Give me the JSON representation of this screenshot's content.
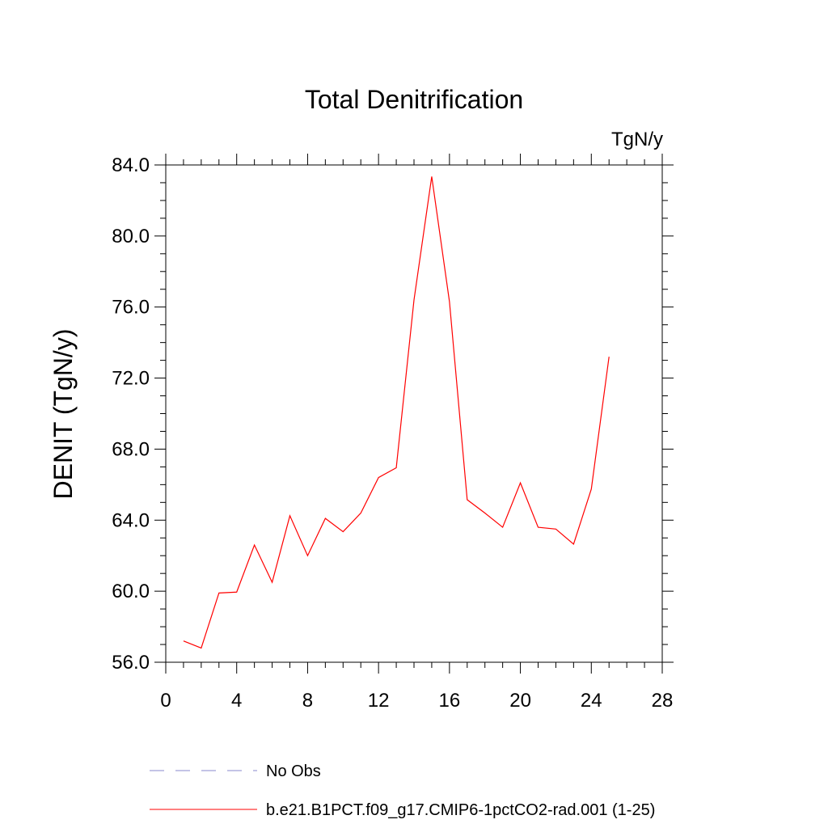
{
  "chart_data": {
    "type": "line",
    "title": "Total Denitrification",
    "units_label": "TgN/y",
    "xlabel": "",
    "ylabel": "DENIT  (TgN/y)",
    "xlim": [
      0,
      28
    ],
    "ylim": [
      56,
      84
    ],
    "x_ticks": [
      0,
      4,
      8,
      12,
      16,
      20,
      24,
      28
    ],
    "x_tick_labels": [
      "0",
      "4",
      "8",
      "12",
      "16",
      "20",
      "24",
      "28"
    ],
    "y_ticks": [
      56,
      60,
      64,
      68,
      72,
      76,
      80,
      84
    ],
    "y_tick_labels": [
      "56.0",
      "60.0",
      "64.0",
      "68.0",
      "72.0",
      "76.0",
      "80.0",
      "84.0"
    ],
    "grid": false,
    "legend_position": "bottom",
    "series": [
      {
        "name": "b.e21.B1PCT.f09_g17.CMIP6-1pctCO2-rad.001 (1-25)",
        "color": "#ff0000",
        "style": "solid",
        "x": [
          1,
          2,
          3,
          4,
          5,
          6,
          7,
          8,
          9,
          10,
          11,
          12,
          13,
          14,
          15,
          16,
          17,
          18,
          19,
          20,
          21,
          22,
          23,
          24,
          25
        ],
        "y": [
          57.2,
          56.8,
          59.9,
          59.95,
          62.6,
          60.5,
          64.25,
          62.0,
          64.1,
          63.35,
          64.4,
          66.4,
          66.95,
          76.4,
          83.35,
          76.3,
          65.15,
          64.4,
          63.6,
          66.1,
          63.6,
          63.5,
          62.65,
          65.75,
          73.2
        ]
      }
    ],
    "legend": [
      {
        "label": "No Obs",
        "color": "#8888cc",
        "style": "dashed"
      },
      {
        "label": "b.e21.B1PCT.f09_g17.CMIP6-1pctCO2-rad.001 (1-25)",
        "color": "#ff0000",
        "style": "solid"
      }
    ]
  }
}
